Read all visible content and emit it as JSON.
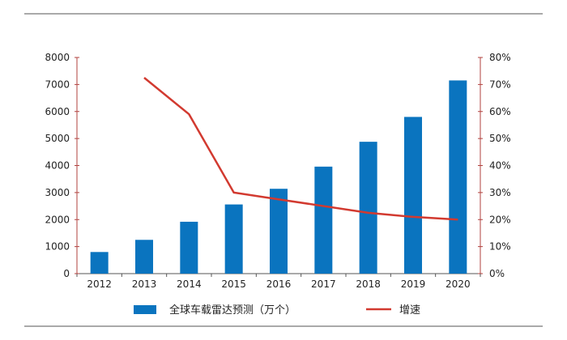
{
  "chart_data": {
    "type": "bar",
    "categories": [
      "2012",
      "2013",
      "2014",
      "2015",
      "2016",
      "2017",
      "2018",
      "2019",
      "2020"
    ],
    "series": [
      {
        "name": "全球车载雷达预测（万个）",
        "type": "bar",
        "axis": "left",
        "color": "#0a74bf",
        "values": [
          800,
          1250,
          1920,
          2560,
          3140,
          3960,
          4880,
          5800,
          7150
        ]
      },
      {
        "name": "增速",
        "type": "line",
        "axis": "right",
        "color": "#d23a30",
        "values": [
          null,
          0.725,
          0.59,
          0.3,
          0.275,
          0.25,
          0.225,
          0.21,
          0.2
        ]
      }
    ],
    "y_left": {
      "min": 0,
      "max": 8000,
      "ticks": [
        0,
        1000,
        2000,
        3000,
        4000,
        5000,
        6000,
        7000,
        8000
      ]
    },
    "y_right": {
      "min": 0,
      "max": 0.8,
      "ticks": [
        "0%",
        "10%",
        "20%",
        "30%",
        "40%",
        "50%",
        "60%",
        "70%",
        "80%"
      ]
    },
    "legend": {
      "position": "bottom",
      "bar_label": "全球车载雷达预测（万个）",
      "line_label": "增速"
    },
    "grid": false
  }
}
